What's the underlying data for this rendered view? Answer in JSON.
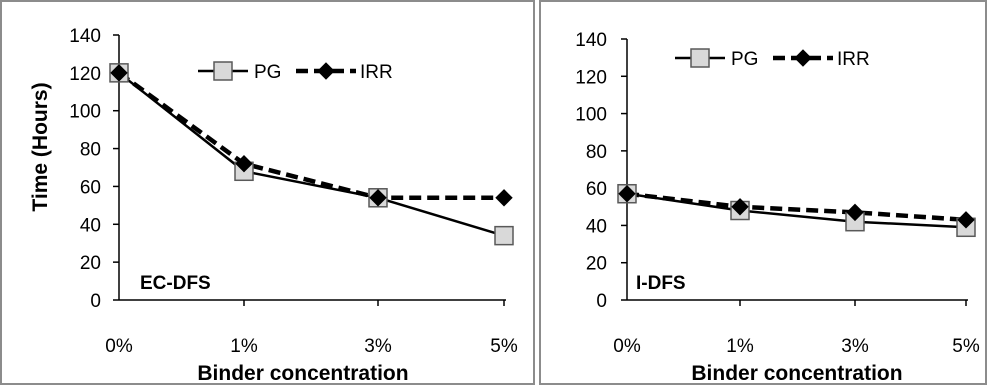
{
  "chart_data": [
    {
      "type": "line",
      "panel_label": "EC-DFS",
      "categories": [
        "0%",
        "1%",
        "3%",
        "5%"
      ],
      "series": [
        {
          "name": "PG",
          "values": [
            120,
            68,
            54,
            34
          ],
          "style": "solid",
          "marker": "square",
          "marker_color": "#d9d9d9"
        },
        {
          "name": "IRR",
          "values": [
            120,
            72,
            54,
            54
          ],
          "style": "dashed",
          "marker": "diamond",
          "marker_color": "#000000"
        }
      ],
      "xlabel": "Binder concentration",
      "ylabel": "Time (Hours)",
      "ylim": [
        0,
        140
      ],
      "yticks": [
        "0",
        "20",
        "40",
        "60",
        "80",
        "100",
        "120",
        "140"
      ],
      "grid": false,
      "legend": "top"
    },
    {
      "type": "line",
      "panel_label": "I-DFS",
      "categories": [
        "0%",
        "1%",
        "3%",
        "5%"
      ],
      "series": [
        {
          "name": "PG",
          "values": [
            57,
            48,
            42,
            39
          ],
          "style": "solid",
          "marker": "square",
          "marker_color": "#d9d9d9"
        },
        {
          "name": "IRR",
          "values": [
            57,
            50,
            47,
            43
          ],
          "style": "dashed",
          "marker": "diamond",
          "marker_color": "#000000"
        }
      ],
      "xlabel": "Binder concentration",
      "ylabel": "",
      "ylim": [
        0,
        140
      ],
      "yticks": [
        "0",
        "20",
        "40",
        "60",
        "80",
        "100",
        "120",
        "140"
      ],
      "grid": false,
      "legend": "top"
    }
  ]
}
